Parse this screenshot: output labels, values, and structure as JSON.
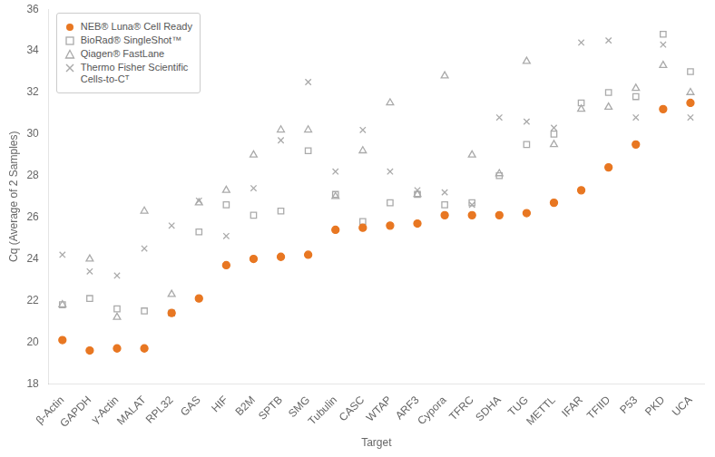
{
  "chart_data": {
    "type": "scatter",
    "xlabel": "Target",
    "ylabel": "Cq (Average of 2 Samples)",
    "categories": [
      "β-Actin",
      "GAPDH",
      "γ-Actin",
      "MALAT",
      "RPL32",
      "GAS",
      "HIF",
      "B2M",
      "SPTB",
      "SMG",
      "Tubulin",
      "CASC",
      "WTAP",
      "ARF3",
      "Cypora",
      "TFRC",
      "SDHA",
      "TUG",
      "METTL",
      "IFAR",
      "TFIID",
      "P53",
      "PKD",
      "UCA"
    ],
    "series": [
      {
        "name": "NEB® Luna® Cell Ready",
        "color": "#E87722",
        "marker": "circle",
        "values": [
          20.1,
          19.6,
          19.7,
          19.7,
          21.4,
          22.1,
          23.7,
          24.0,
          24.1,
          24.2,
          25.4,
          25.5,
          25.6,
          25.7,
          26.1,
          26.1,
          26.1,
          26.2,
          26.7,
          27.3,
          28.4,
          29.5,
          31.2,
          31.5
        ]
      },
      {
        "name": "BioRad® SingleShot™",
        "color": "#AAAAAA",
        "marker": "square",
        "values": [
          21.8,
          22.1,
          21.6,
          21.5,
          21.4,
          25.3,
          26.6,
          26.1,
          26.3,
          29.2,
          27.1,
          25.8,
          26.7,
          27.1,
          26.6,
          26.7,
          28.0,
          29.5,
          30.0,
          31.5,
          32.0,
          31.8,
          34.8,
          33.0
        ]
      },
      {
        "name": "Qiagen® FastLane",
        "color": "#AAAAAA",
        "marker": "triangle",
        "values": [
          21.8,
          24.0,
          21.2,
          26.3,
          22.3,
          26.7,
          27.3,
          29.0,
          30.2,
          30.2,
          27.0,
          29.2,
          31.5,
          27.1,
          32.8,
          29.0,
          28.1,
          33.5,
          29.5,
          31.2,
          31.3,
          32.2,
          33.3,
          32.0
        ]
      },
      {
        "name": "Thermo Fisher Scientific\nCells-to-Cᵀ",
        "color": "#AAAAAA",
        "marker": "x",
        "values": [
          24.2,
          23.4,
          23.2,
          24.5,
          25.6,
          26.8,
          25.1,
          27.4,
          29.7,
          32.5,
          28.2,
          30.2,
          28.2,
          27.3,
          27.2,
          26.6,
          30.8,
          30.6,
          30.3,
          34.4,
          34.5,
          30.8,
          34.3,
          30.8
        ]
      }
    ],
    "ylim": [
      18,
      36
    ],
    "yticks": [
      18,
      20,
      22,
      24,
      26,
      28,
      30,
      32,
      34,
      36
    ],
    "grid": false,
    "legend": "upper left"
  }
}
